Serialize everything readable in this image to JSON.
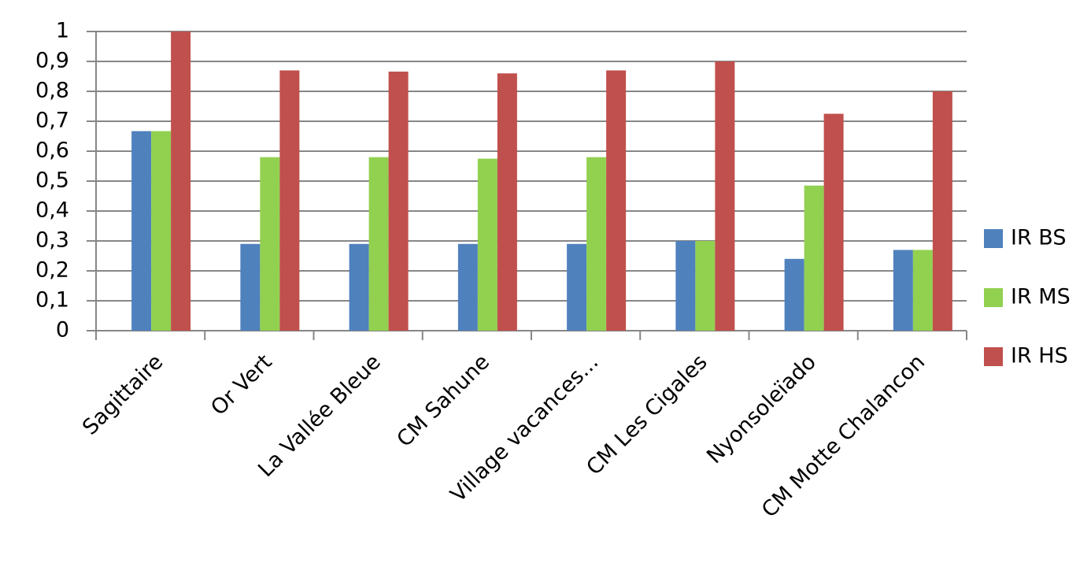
{
  "chart_data": {
    "type": "bar",
    "categories": [
      "Sagittaire",
      "Or Vert",
      "La Vallée Bleue",
      "CM Sahune",
      "Village vacances...",
      "CM Les Cigales",
      "Nyonsoleïado",
      "CM Motte Chalancon"
    ],
    "series": [
      {
        "name": "IR BS",
        "color": "#4f81bd",
        "values": [
          0.667,
          0.29,
          0.29,
          0.29,
          0.29,
          0.3,
          0.24,
          0.27
        ]
      },
      {
        "name": "IR MS",
        "color": "#92d050",
        "values": [
          0.667,
          0.58,
          0.58,
          0.575,
          0.58,
          0.3,
          0.485,
          0.27
        ]
      },
      {
        "name": "IR HS",
        "color": "#c0504d",
        "values": [
          1,
          0.87,
          0.866,
          0.86,
          0.87,
          0.9,
          0.725,
          0.8
        ]
      }
    ],
    "ylim": [
      0,
      1
    ],
    "yticks": [
      0,
      {
        "value": 0.1,
        "label": "0,1"
      },
      {
        "value": 0.2,
        "label": "0,2"
      },
      {
        "value": 0.3,
        "label": "0,3"
      },
      {
        "value": 0.4,
        "label": "0,4"
      },
      {
        "value": 0.5,
        "label": "0,5"
      },
      {
        "value": 0.6,
        "label": "0,6"
      },
      {
        "value": 0.7,
        "label": "0,7"
      },
      {
        "value": 0.8,
        "label": "0,8"
      },
      {
        "value": 0.9,
        "label": "0,9"
      },
      1
    ],
    "grid": true,
    "legend": "right"
  }
}
